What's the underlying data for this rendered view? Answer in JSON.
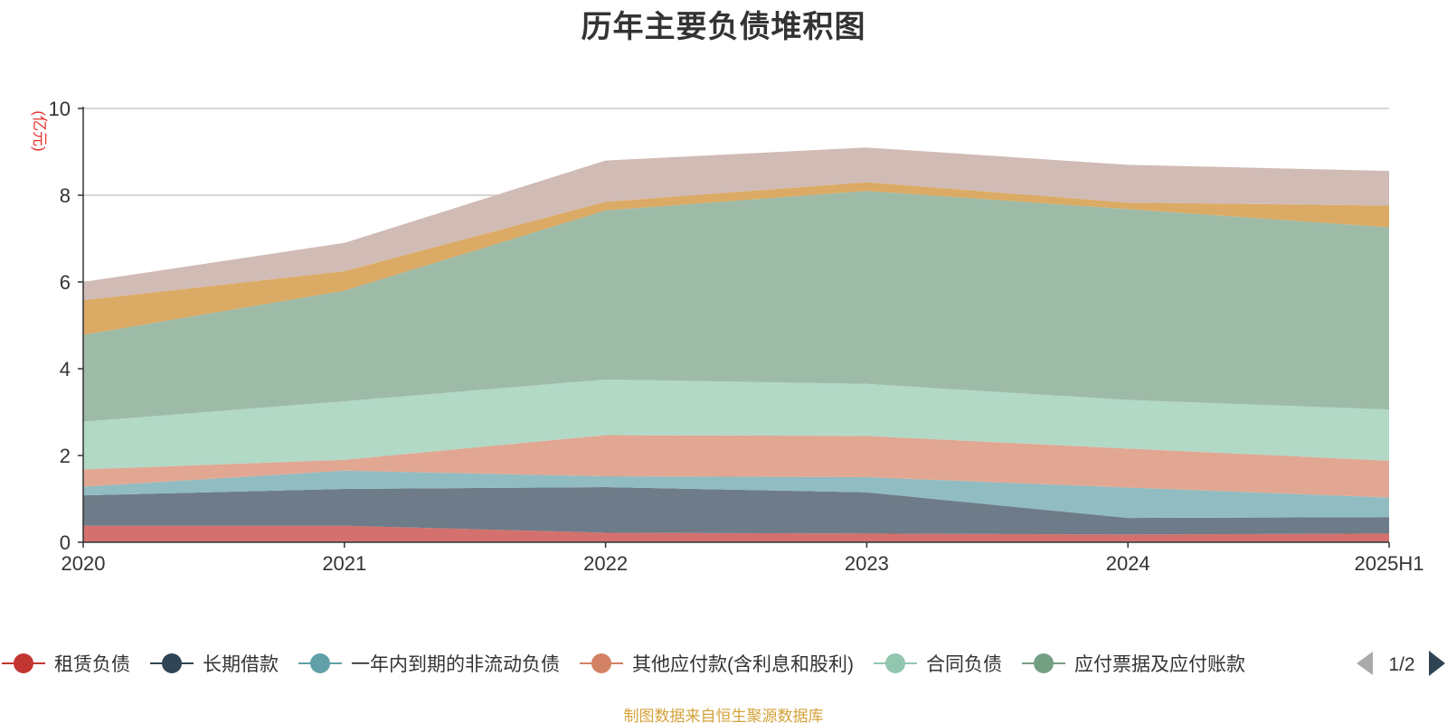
{
  "title": "历年主要负债堆积图",
  "source_note": "制图数据来自恒生聚源数据库",
  "legend_pager": {
    "label": "1/2"
  },
  "chart_data": {
    "type": "area",
    "stacked": true,
    "title": "历年主要负债堆积图",
    "ylabel": "(亿元)",
    "xlabel": "",
    "ylim": [
      0,
      10
    ],
    "yticks": [
      0,
      2,
      4,
      6,
      8,
      10
    ],
    "grid": true,
    "legend_position": "bottom",
    "categories": [
      "2020",
      "2021",
      "2022",
      "2023",
      "2024",
      "2025H1"
    ],
    "series": [
      {
        "name": "租赁负债",
        "color": "#c23531",
        "fill": "#d4706d",
        "values": [
          0.38,
          0.38,
          0.22,
          0.2,
          0.18,
          0.2
        ]
      },
      {
        "name": "长期借款",
        "color": "#2f4554",
        "fill": "#6d7c88",
        "values": [
          0.7,
          0.85,
          1.05,
          0.95,
          0.38,
          0.38
        ]
      },
      {
        "name": "一年内到期的非流动负债",
        "color": "#61a0a8",
        "fill": "#90bcc2",
        "values": [
          0.2,
          0.42,
          0.25,
          0.35,
          0.7,
          0.45
        ]
      },
      {
        "name": "其他应付款(含利息和股利)",
        "color": "#d48265",
        "fill": "#e1a792",
        "values": [
          0.4,
          0.25,
          0.95,
          0.95,
          0.9,
          0.85
        ]
      },
      {
        "name": "合同负债",
        "color": "#91c7ae",
        "fill": "#b2d8c6",
        "values": [
          1.1,
          1.35,
          1.28,
          1.2,
          1.12,
          1.18
        ]
      },
      {
        "name": "应付票据及应付账款",
        "color": "#749f83",
        "fill": "#9ebba8",
        "values": [
          2.0,
          2.55,
          3.9,
          4.45,
          4.4,
          4.2
        ]
      },
      {
        "name": "",
        "color": "#ca8622",
        "fill": "#dbaa64",
        "values": [
          0.8,
          0.45,
          0.2,
          0.2,
          0.15,
          0.5
        ]
      },
      {
        "name": "",
        "color": "#bda29a",
        "fill": "#d1bbb5",
        "values": [
          0.42,
          0.65,
          0.95,
          0.8,
          0.87,
          0.8
        ]
      }
    ]
  }
}
